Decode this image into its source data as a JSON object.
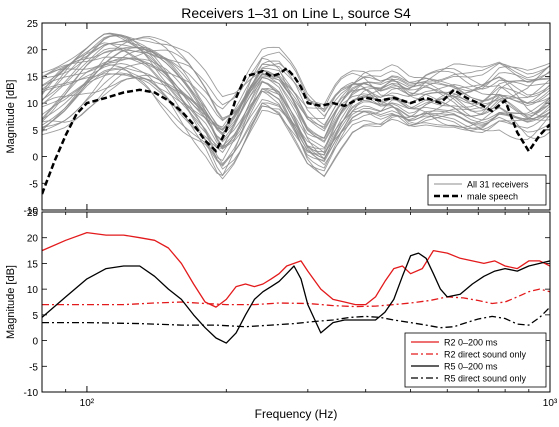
{
  "figure": {
    "title": "Receivers 1–31 on Line L, source S4",
    "xlabel": "Frequency (Hz)"
  },
  "chart_data": [
    {
      "type": "line",
      "title": "Receivers 1–31 on Line L, source S4",
      "ylabel": "Magnitude [dB]",
      "xscale": "log",
      "xlim": [
        80,
        1000
      ],
      "ylim": [
        -10,
        25
      ],
      "yticks": [
        -10,
        -5,
        0,
        5,
        10,
        15,
        20,
        25
      ],
      "xticks": [
        {
          "value": 100,
          "label": "10²"
        },
        {
          "value": 1000,
          "label": "10³"
        }
      ],
      "legend": {
        "placement": "bottom-right",
        "entries": [
          {
            "label": "All 31 receivers",
            "color": "#8c8c8c",
            "dash": "solid",
            "width": 1
          },
          {
            "label": "male speech",
            "color": "#000000",
            "dash": "dashed",
            "width": 2.5
          }
        ]
      },
      "band": {
        "color": "#8c8c8c",
        "count": 31,
        "x": [
          80,
          90,
          100,
          110,
          120,
          135,
          150,
          165,
          180,
          195,
          210,
          225,
          240,
          260,
          280,
          300,
          325,
          350,
          375,
          400,
          430,
          460,
          500,
          540,
          580,
          620,
          670,
          720,
          780,
          840,
          900,
          960,
          1000
        ],
        "center": [
          10,
          13,
          16,
          18.5,
          19,
          18,
          15.5,
          12,
          8,
          3,
          6,
          11,
          15,
          14,
          10,
          5,
          3,
          8,
          11,
          12,
          11,
          12,
          10,
          11,
          11,
          11,
          10,
          10,
          12,
          11,
          10,
          11,
          12
        ],
        "spread": [
          6,
          6,
          5,
          5,
          4,
          4,
          5,
          6,
          6,
          7,
          6,
          5,
          4,
          5,
          6,
          6,
          6,
          6,
          5,
          5,
          5,
          5,
          5,
          5,
          5,
          5,
          5,
          5,
          5,
          5,
          5,
          5,
          5
        ]
      },
      "series": [
        {
          "name": "male speech",
          "color": "#000000",
          "dash": "dashed",
          "x": [
            80,
            85,
            90,
            95,
            100,
            110,
            120,
            130,
            140,
            150,
            160,
            170,
            180,
            190,
            200,
            210,
            220,
            230,
            240,
            250,
            260,
            270,
            280,
            290,
            300,
            320,
            340,
            360,
            380,
            400,
            430,
            460,
            500,
            540,
            580,
            620,
            660,
            700,
            750,
            800,
            850,
            900,
            950,
            1000
          ],
          "y": [
            -7,
            -1,
            4,
            8,
            10,
            11,
            12,
            12.5,
            12,
            10.5,
            8.5,
            6,
            3,
            1,
            5,
            11,
            15,
            15.5,
            16,
            15,
            15.5,
            16.5,
            15,
            13,
            10,
            9.5,
            10,
            9.5,
            10.5,
            11,
            10.5,
            11,
            10,
            11,
            10,
            12.5,
            11,
            10,
            8.5,
            10.5,
            4.5,
            1,
            4,
            6
          ]
        }
      ]
    },
    {
      "type": "line",
      "title": "",
      "ylabel": "Magnitude [dB]",
      "xscale": "log",
      "xlim": [
        80,
        1000
      ],
      "ylim": [
        -10,
        25
      ],
      "yticks": [
        -10,
        -5,
        0,
        5,
        10,
        15,
        20,
        25
      ],
      "xticks": [
        {
          "value": 100,
          "label": "10²"
        },
        {
          "value": 1000,
          "label": "10³"
        }
      ],
      "legend": {
        "placement": "bottom-right",
        "entries": [
          {
            "label": "R2 0–200 ms",
            "color": "#e31a1c",
            "dash": "solid",
            "width": 1.2
          },
          {
            "label": "R2 direct sound only",
            "color": "#e31a1c",
            "dash": "dashdot",
            "width": 1.2
          },
          {
            "label": "R5 0–200 ms",
            "color": "#000000",
            "dash": "solid",
            "width": 1.2
          },
          {
            "label": "R5 direct  sound only",
            "color": "#000000",
            "dash": "dashdot",
            "width": 1.2
          }
        ]
      },
      "series": [
        {
          "name": "R2 0–200 ms",
          "color": "#e31a1c",
          "dash": "solid",
          "x": [
            80,
            90,
            100,
            110,
            120,
            130,
            140,
            150,
            160,
            170,
            180,
            190,
            200,
            210,
            220,
            230,
            240,
            250,
            260,
            270,
            280,
            290,
            300,
            320,
            340,
            360,
            380,
            400,
            420,
            440,
            460,
            480,
            500,
            530,
            560,
            600,
            640,
            680,
            720,
            760,
            800,
            850,
            900,
            950,
            1000
          ],
          "y": [
            17.5,
            19.5,
            21,
            20.5,
            20.5,
            20,
            19.5,
            18,
            15,
            11,
            7.5,
            6.5,
            8,
            10.5,
            11,
            10.5,
            11,
            12,
            13,
            14.5,
            15,
            15.5,
            13.5,
            10,
            8,
            7.5,
            7,
            7,
            8.5,
            11.5,
            14,
            14.5,
            13,
            14,
            17.5,
            17,
            16,
            15.5,
            15,
            15.5,
            14.5,
            14,
            15.5,
            15.5,
            14.5
          ]
        },
        {
          "name": "R2 direct sound only",
          "color": "#e31a1c",
          "dash": "dashdot",
          "x": [
            80,
            100,
            120,
            140,
            160,
            180,
            200,
            230,
            260,
            300,
            340,
            380,
            420,
            460,
            500,
            550,
            600,
            650,
            700,
            750,
            800,
            850,
            900,
            950,
            1000
          ],
          "y": [
            7,
            7,
            7,
            7.3,
            7.5,
            7.2,
            7,
            7,
            7.3,
            7.2,
            6.8,
            6.6,
            6.7,
            7,
            7.3,
            7.8,
            8.5,
            8.3,
            7.8,
            7.2,
            7.5,
            8.5,
            9.5,
            10,
            9.5
          ]
        },
        {
          "name": "R5 0–200 ms",
          "color": "#000000",
          "dash": "solid",
          "x": [
            80,
            90,
            100,
            110,
            120,
            130,
            140,
            150,
            160,
            170,
            180,
            190,
            200,
            210,
            220,
            230,
            240,
            250,
            260,
            270,
            280,
            290,
            300,
            320,
            340,
            360,
            380,
            400,
            420,
            440,
            460,
            480,
            500,
            520,
            540,
            560,
            580,
            600,
            640,
            680,
            720,
            760,
            800,
            850,
            900,
            950,
            1000
          ],
          "y": [
            4.5,
            8.5,
            12,
            14,
            14.5,
            14.5,
            12.5,
            10,
            8,
            5,
            2.5,
            0.5,
            -0.5,
            1.5,
            5,
            8,
            9.5,
            10.5,
            11.5,
            13,
            14.5,
            12,
            7,
            1.5,
            3.5,
            4,
            4,
            4,
            4,
            5.5,
            8,
            12.5,
            16.5,
            17,
            16,
            13,
            10,
            8.5,
            9,
            11,
            12.5,
            13.5,
            14,
            13.5,
            14.5,
            15,
            15.5
          ]
        },
        {
          "name": "R5 direct  sound only",
          "color": "#000000",
          "dash": "dashdot",
          "x": [
            80,
            100,
            130,
            160,
            190,
            220,
            250,
            280,
            310,
            340,
            370,
            400,
            430,
            460,
            500,
            540,
            580,
            620,
            660,
            700,
            750,
            800,
            850,
            900,
            950,
            1000
          ],
          "y": [
            3.5,
            3.5,
            3.3,
            3,
            3,
            2.7,
            3,
            3.3,
            3.7,
            4,
            4.5,
            4.7,
            4.5,
            4,
            3.5,
            3,
            2.5,
            2.7,
            3.5,
            4.2,
            4.7,
            4.3,
            3.2,
            3,
            4.5,
            6.5
          ]
        }
      ]
    }
  ]
}
